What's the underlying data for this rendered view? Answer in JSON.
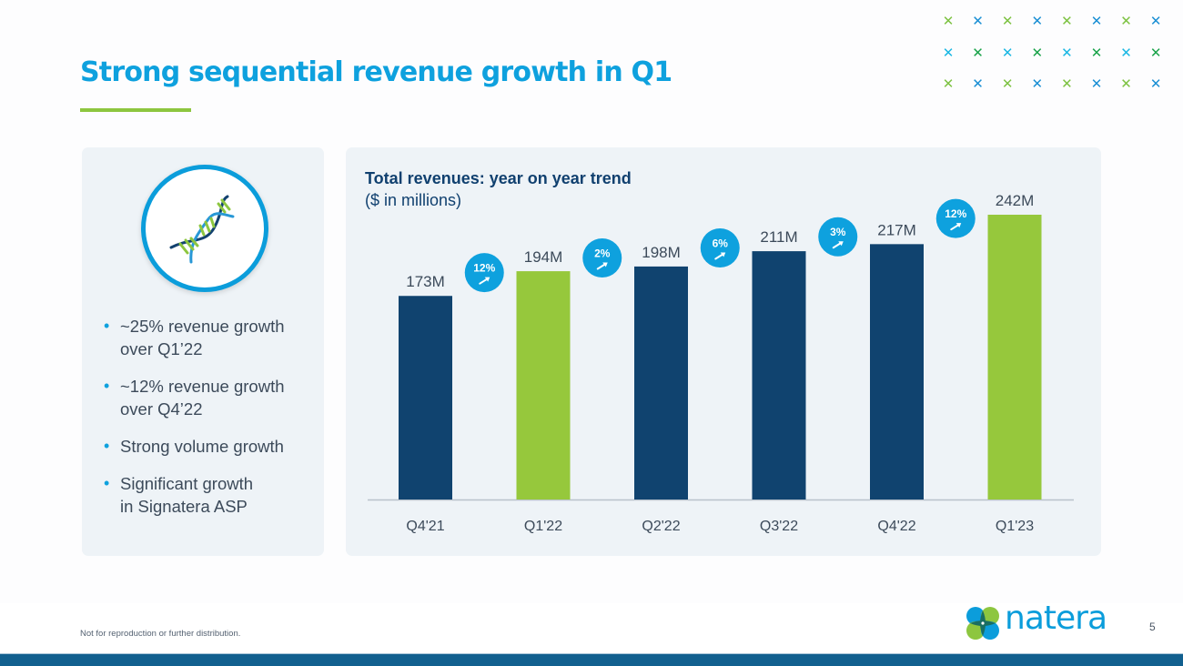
{
  "slide": {
    "title": "Strong sequential revenue growth in Q1",
    "page_number": "5",
    "footer_note": "Not for reproduction or further distribution.",
    "logo_text": "natera",
    "colors": {
      "brand_blue": "#0ea1de",
      "navy": "#10406f",
      "green": "#96c83c",
      "bottom_bar": "#12608f"
    }
  },
  "decor": {
    "x_pattern_rows": [
      [
        "#7dc242",
        "#1a8fd4",
        "#7dc242",
        "#1a8fd4",
        "#7dc242",
        "#1a8fd4",
        "#7dc242",
        "#1a8fd4"
      ],
      [
        "#1ab7e3",
        "#1aa34a",
        "#1ab7e3",
        "#1aa34a",
        "#1ab7e3",
        "#1aa34a",
        "#1ab7e3",
        "#1aa34a"
      ],
      [
        "#7dc242",
        "#1a8fd4",
        "#7dc242",
        "#1a8fd4",
        "#7dc242",
        "#1a8fd4",
        "#7dc242",
        "#1a8fd4"
      ]
    ],
    "x_glyph": "✕"
  },
  "left_panel": {
    "icon": "dna-icon",
    "bullets": [
      {
        "line1": "~25% revenue growth",
        "line2": "over Q1’22"
      },
      {
        "line1": "~12% revenue growth",
        "line2": "over Q4’22"
      },
      {
        "line1": "Strong volume growth",
        "line2": ""
      },
      {
        "line1": "Significant growth",
        "line2": "in Signatera ASP"
      }
    ],
    "bullet_glyph": "•"
  },
  "chart_data": {
    "type": "bar",
    "title": "Total revenues: year on year trend",
    "subtitle": "($ in millions)",
    "xlabel": "",
    "ylabel": "",
    "categories": [
      "Q4'21",
      "Q1'22",
      "Q2'22",
      "Q3'22",
      "Q4'22",
      "Q1'23"
    ],
    "values": [
      173,
      194,
      198,
      211,
      217,
      242
    ],
    "value_labels": [
      "173M",
      "194M",
      "198M",
      "211M",
      "217M",
      "242M"
    ],
    "bar_colors": [
      "#10436f",
      "#96c83c",
      "#10436f",
      "#10436f",
      "#10436f",
      "#96c83c"
    ],
    "growth_badges": [
      {
        "between": [
          "Q4'21",
          "Q1'22"
        ],
        "label": "12%",
        "direction": "up"
      },
      {
        "between": [
          "Q1'22",
          "Q2'22"
        ],
        "label": "2%",
        "direction": "up"
      },
      {
        "between": [
          "Q2'22",
          "Q3'22"
        ],
        "label": "6%",
        "direction": "up"
      },
      {
        "between": [
          "Q3'22",
          "Q4'22"
        ],
        "label": "3%",
        "direction": "up"
      },
      {
        "between": [
          "Q4'22",
          "Q1'23"
        ],
        "label": "12%",
        "direction": "up"
      }
    ],
    "ylim": [
      0,
      242
    ],
    "grid": false,
    "legend": "none",
    "badge_color": "#0ea1de"
  }
}
